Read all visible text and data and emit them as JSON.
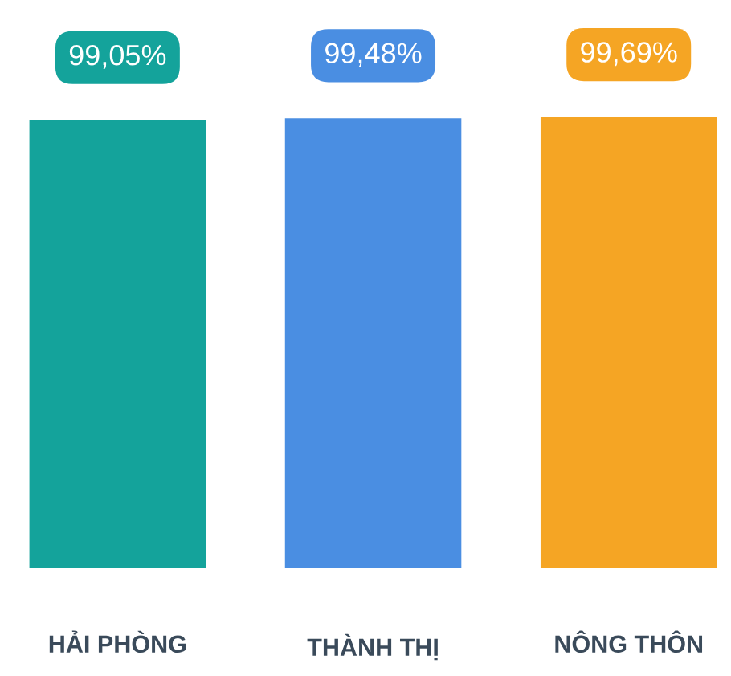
{
  "chart_data": {
    "type": "bar",
    "categories": [
      "HẢI PHÒNG",
      "THÀNH THỊ",
      "NÔNG THÔN"
    ],
    "values": [
      99.05,
      99.48,
      99.69
    ],
    "colors": [
      "#14a39b",
      "#4a8ee2",
      "#f5a524"
    ],
    "value_labels": [
      "99,05%",
      "99,48%",
      "99,69%"
    ],
    "grid": false,
    "legend": false
  }
}
